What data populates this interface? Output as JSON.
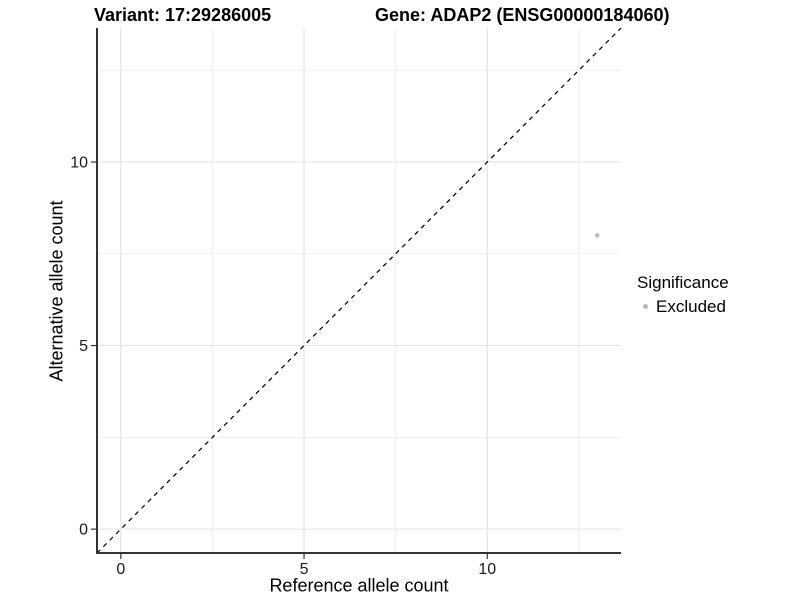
{
  "title": {
    "variant_label": "Variant: 17:29286005",
    "gene_label": "Gene: ADAP2 (ENSG00000184060)"
  },
  "chart_data": {
    "type": "scatter",
    "title": "Variant: 17:29286005   Gene: ADAP2 (ENSG00000184060)",
    "xlabel": "Reference allele count",
    "ylabel": "Alternative allele count",
    "xlim": [
      -0.65,
      13.65
    ],
    "ylim": [
      -0.65,
      13.65
    ],
    "x_axis_ticks": [
      0,
      5,
      10
    ],
    "y_axis_ticks": [
      0,
      5,
      10
    ],
    "minor_ticks": [
      2.5,
      7.5,
      12.5
    ],
    "grid": "major+minor",
    "legend": {
      "title": "Significance",
      "position": "right",
      "entries": [
        "Excluded"
      ]
    },
    "series": [
      {
        "name": "Excluded",
        "color": "#b8b8b8",
        "points": [
          {
            "x": 13,
            "y": 8
          }
        ]
      }
    ],
    "reference_line": {
      "kind": "identity",
      "slope": 1,
      "intercept": 0,
      "linetype": "dashed",
      "color": "#000000"
    },
    "colors": {
      "background": "#ffffff",
      "grid_major": "#e3e3e3",
      "grid_minor": "#efefef",
      "axis_line": "#333333",
      "tick_text": "#1a1a1a"
    }
  }
}
